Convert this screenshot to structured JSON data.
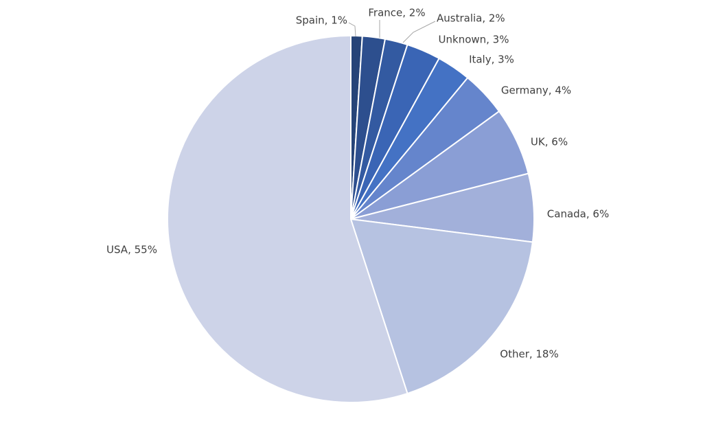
{
  "chart_data": {
    "type": "pie",
    "title": "",
    "start": "12 o'clock",
    "direction": "clockwise",
    "slices": [
      {
        "label": "Spain",
        "value": 1,
        "display": "Spain, 1%",
        "color": "#264478"
      },
      {
        "label": "France",
        "value": 2,
        "display": "France, 2%",
        "color": "#2d4f8e"
      },
      {
        "label": "Australia",
        "value": 2,
        "display": "Australia, 2%",
        "color": "#335aa1"
      },
      {
        "label": "Unknown",
        "value": 3,
        "display": "Unknown, 3%",
        "color": "#3a65b5"
      },
      {
        "label": "Italy",
        "value": 3,
        "display": "Italy, 3%",
        "color": "#4472c4"
      },
      {
        "label": "Germany",
        "value": 4,
        "display": "Germany, 4%",
        "color": "#6585cc"
      },
      {
        "label": "UK",
        "value": 6,
        "display": "UK, 6%",
        "color": "#8a9ed5"
      },
      {
        "label": "Canada",
        "value": 6,
        "display": "Canada, 6%",
        "color": "#a2b0da"
      },
      {
        "label": "Other",
        "value": 18,
        "display": "Other, 18%",
        "color": "#b6c2e1"
      },
      {
        "label": "USA",
        "value": 55,
        "display": "USA, 55%",
        "color": "#cdd3e8"
      }
    ]
  }
}
